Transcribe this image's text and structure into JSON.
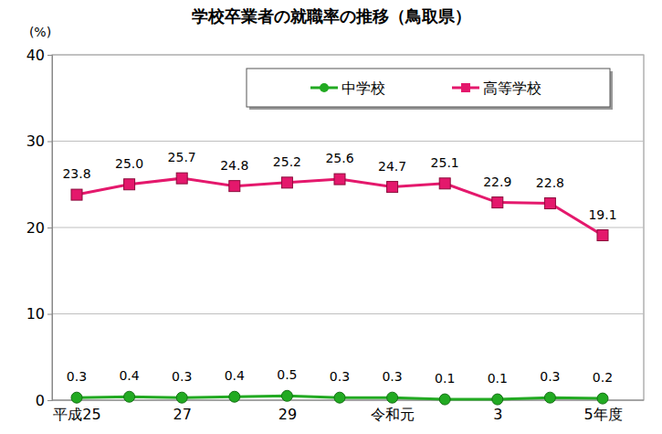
{
  "chart_data": {
    "type": "line",
    "title": "学校卒業者の就職率の推移（鳥取県）",
    "y_label": "(%)",
    "categories": [
      "平成25",
      null,
      "27",
      null,
      "29",
      null,
      "令和元",
      null,
      "3",
      null,
      "5年度"
    ],
    "series": [
      {
        "name": "中学校",
        "color": "#22aa22",
        "marker": "circle",
        "values": [
          0.3,
          0.4,
          0.3,
          0.4,
          0.5,
          0.3,
          0.3,
          0.1,
          0.1,
          0.3,
          0.2
        ],
        "value_labels": [
          "0.3",
          "0.4",
          "0.3",
          "0.4",
          "0.5",
          "0.3",
          "0.3",
          "0.1",
          "0.1",
          "0.3",
          "0.2"
        ]
      },
      {
        "name": "高等学校",
        "color": "#e4186c",
        "marker": "square",
        "values": [
          23.8,
          25.0,
          25.7,
          24.8,
          25.2,
          25.6,
          24.7,
          25.1,
          22.9,
          22.8,
          19.1
        ],
        "value_labels": [
          "23.8",
          "25.0",
          "25.7",
          "24.8",
          "25.2",
          "25.6",
          "24.7",
          "25.1",
          "22.9",
          "22.8",
          "19.1"
        ]
      }
    ],
    "ylim": [
      0,
      40
    ],
    "yticks": [
      0,
      10,
      20,
      30,
      40
    ],
    "grid": true,
    "legend": "top",
    "data_labels": true
  }
}
